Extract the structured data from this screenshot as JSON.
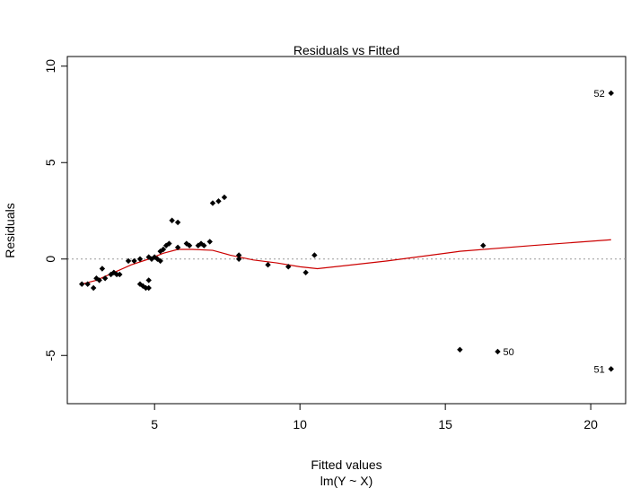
{
  "chart_data": {
    "type": "scatter",
    "title": "Residuals vs Fitted",
    "xlabel": "Fitted values",
    "subtitle": "lm(Y ~ X)",
    "ylabel": "Residuals",
    "xlim": [
      2.0,
      21.2
    ],
    "ylim": [
      -7.5,
      10.5
    ],
    "xticks": [
      5,
      10,
      15,
      20
    ],
    "yticks": [
      -5,
      0,
      5,
      10
    ],
    "xtick_labels": [
      "5",
      "10",
      "15",
      "20"
    ],
    "ytick_labels": [
      "-5",
      "0",
      "5",
      "10"
    ],
    "reference_line": 0,
    "grid": false,
    "points": [
      {
        "x": 2.5,
        "y": -1.3
      },
      {
        "x": 2.7,
        "y": -1.3
      },
      {
        "x": 2.9,
        "y": -1.5
      },
      {
        "x": 3.0,
        "y": -1.0
      },
      {
        "x": 3.1,
        "y": -1.1
      },
      {
        "x": 3.2,
        "y": -0.5
      },
      {
        "x": 3.3,
        "y": -1.0
      },
      {
        "x": 3.5,
        "y": -0.8
      },
      {
        "x": 3.6,
        "y": -0.7
      },
      {
        "x": 3.7,
        "y": -0.8
      },
      {
        "x": 3.8,
        "y": -0.8
      },
      {
        "x": 4.1,
        "y": -0.1
      },
      {
        "x": 4.3,
        "y": -0.1
      },
      {
        "x": 4.5,
        "y": -1.3
      },
      {
        "x": 4.5,
        "y": 0.0
      },
      {
        "x": 4.6,
        "y": -1.4
      },
      {
        "x": 4.7,
        "y": -1.5
      },
      {
        "x": 4.8,
        "y": -1.1
      },
      {
        "x": 4.8,
        "y": -1.5
      },
      {
        "x": 4.8,
        "y": 0.1
      },
      {
        "x": 4.9,
        "y": 0.0
      },
      {
        "x": 5.0,
        "y": 0.1
      },
      {
        "x": 5.1,
        "y": 0.0
      },
      {
        "x": 5.2,
        "y": 0.4
      },
      {
        "x": 5.2,
        "y": -0.1
      },
      {
        "x": 5.3,
        "y": 0.5
      },
      {
        "x": 5.4,
        "y": 0.7
      },
      {
        "x": 5.5,
        "y": 0.8
      },
      {
        "x": 5.6,
        "y": 2.0
      },
      {
        "x": 5.8,
        "y": 1.9
      },
      {
        "x": 5.8,
        "y": 0.6
      },
      {
        "x": 6.1,
        "y": 0.8
      },
      {
        "x": 6.2,
        "y": 0.7
      },
      {
        "x": 6.5,
        "y": 0.7
      },
      {
        "x": 6.6,
        "y": 0.8
      },
      {
        "x": 6.7,
        "y": 0.7
      },
      {
        "x": 6.9,
        "y": 0.9
      },
      {
        "x": 7.0,
        "y": 2.9
      },
      {
        "x": 7.2,
        "y": 3.0
      },
      {
        "x": 7.4,
        "y": 3.2
      },
      {
        "x": 7.9,
        "y": 0.2
      },
      {
        "x": 7.9,
        "y": 0.0
      },
      {
        "x": 8.9,
        "y": -0.3
      },
      {
        "x": 9.6,
        "y": -0.4
      },
      {
        "x": 10.2,
        "y": -0.7
      },
      {
        "x": 10.5,
        "y": 0.2
      },
      {
        "x": 15.5,
        "y": -4.7
      },
      {
        "x": 16.3,
        "y": 0.7
      },
      {
        "x": 16.8,
        "y": -4.8,
        "label": "50"
      },
      {
        "x": 20.7,
        "y": -5.7,
        "label": "51"
      },
      {
        "x": 20.7,
        "y": 8.6,
        "label": "52"
      }
    ],
    "smoother": {
      "name": "lowess",
      "color": "#cc0000",
      "x": [
        2.5,
        3.0,
        3.6,
        4.2,
        4.8,
        5.3,
        5.8,
        6.3,
        7.0,
        7.6,
        8.4,
        9.2,
        10.0,
        10.6,
        13.0,
        15.5,
        18.0,
        20.7
      ],
      "y": [
        -1.3,
        -1.1,
        -0.7,
        -0.3,
        0.0,
        0.3,
        0.5,
        0.5,
        0.45,
        0.2,
        -0.05,
        -0.2,
        -0.4,
        -0.5,
        -0.1,
        0.4,
        0.7,
        1.0
      ]
    },
    "colors": {
      "points": "#000000",
      "reference_line": "#999999",
      "smoother": "#cc0000",
      "axes": "#000000"
    }
  }
}
